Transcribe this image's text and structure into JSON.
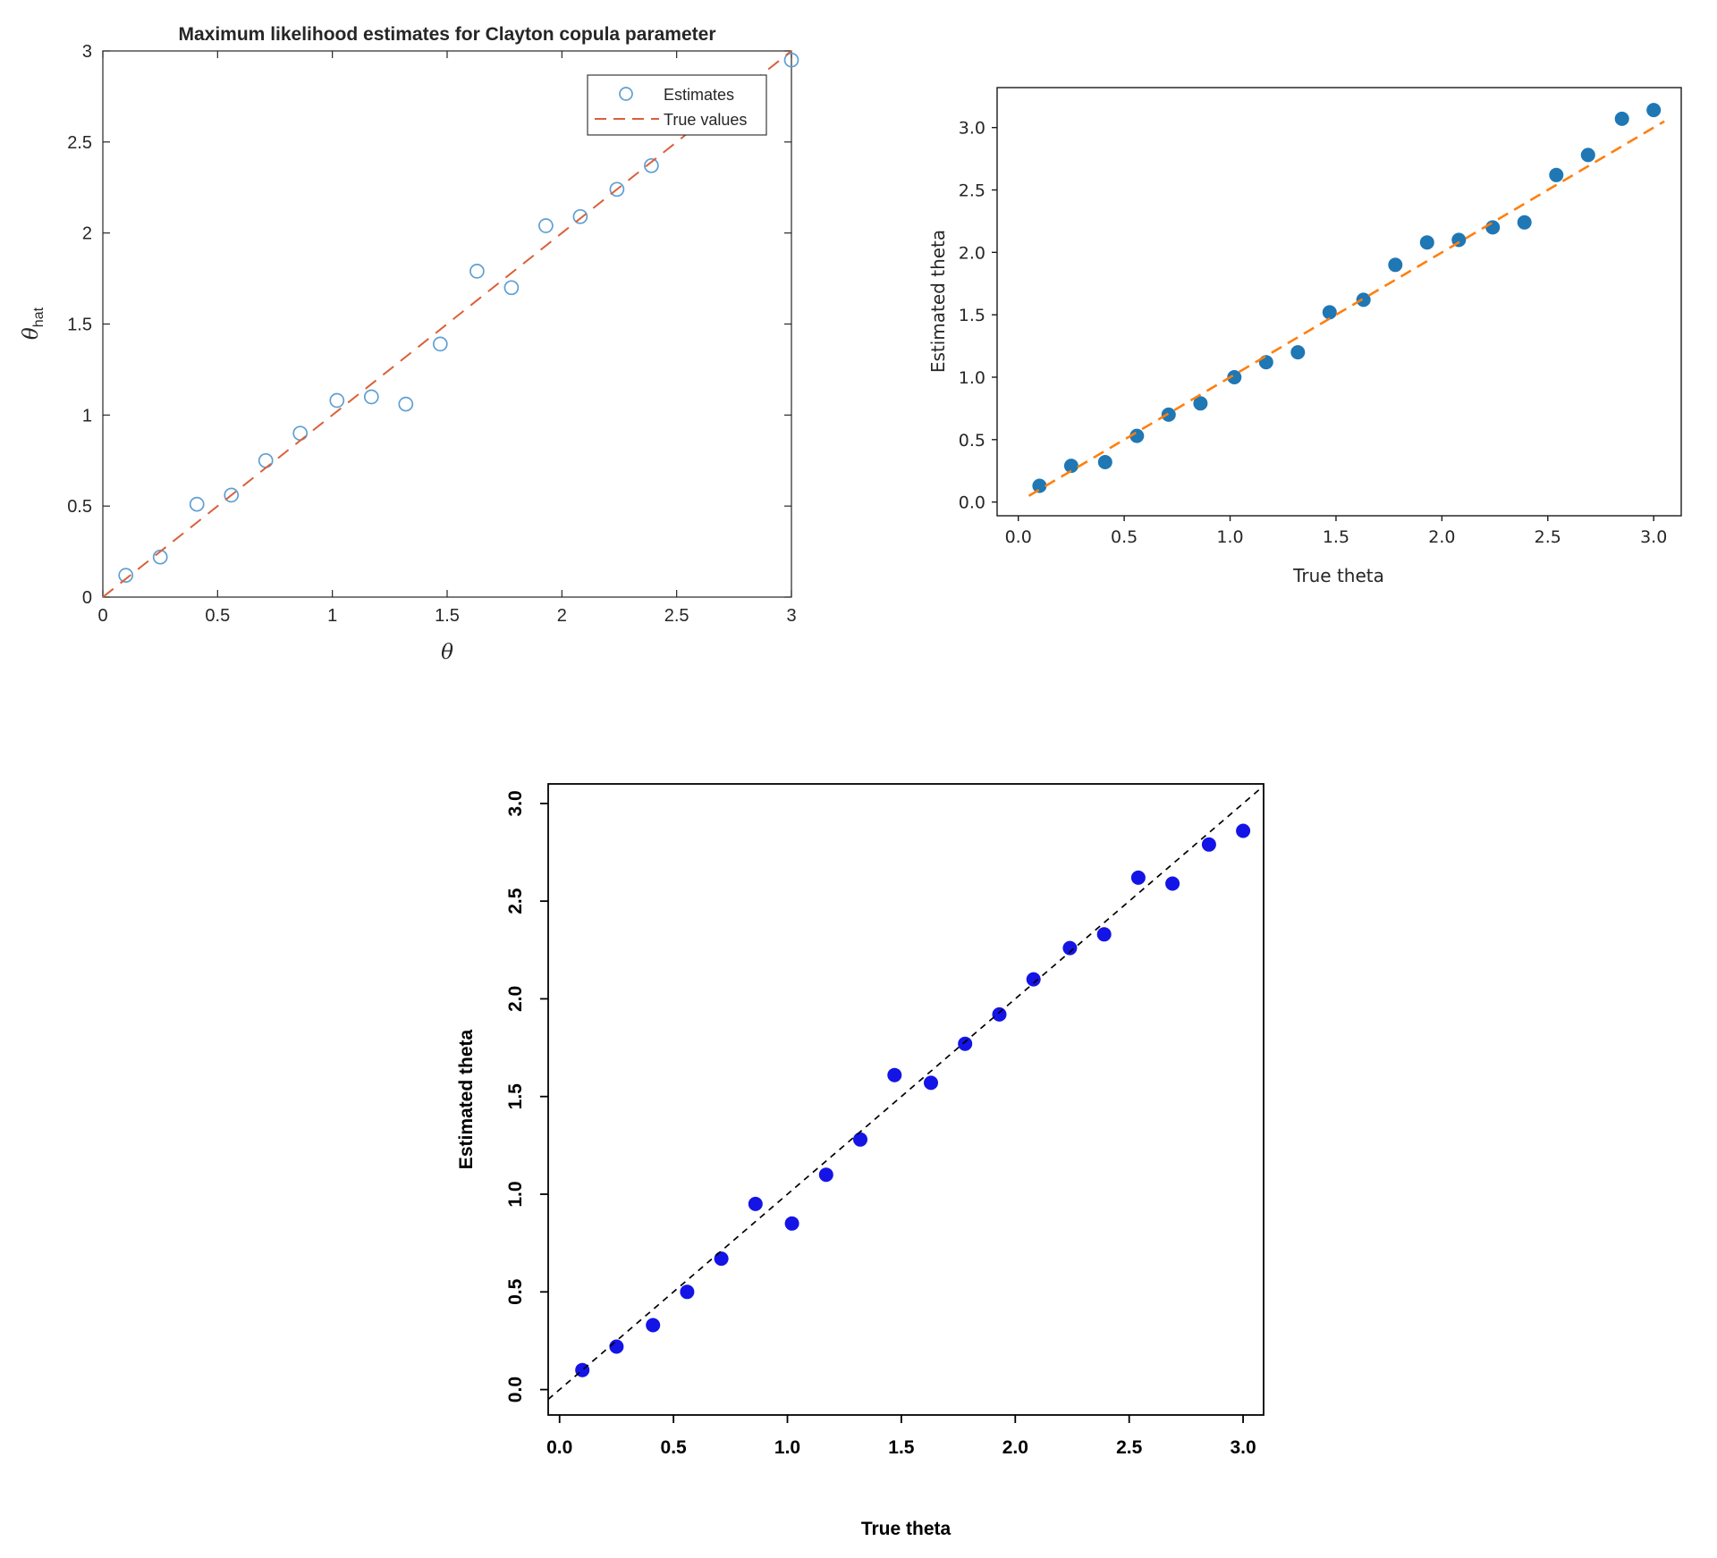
{
  "figure": {
    "description": "Three scatter plots of maximum likelihood estimates versus true values of the Clayton copula parameter",
    "background": "#ffffff"
  },
  "chart_data": [
    {
      "id": "chart-matlab",
      "type": "scatter",
      "style": "matlab",
      "title": "Maximum likelihood estimates for Clayton copula parameter",
      "xlabel": "θ",
      "ylabel": {
        "base": "θ",
        "subscript": "hat"
      },
      "xlim": [
        0,
        3
      ],
      "ylim": [
        0,
        3
      ],
      "grid": false,
      "xticks": {
        "values": [
          0,
          0.5,
          1,
          1.5,
          2,
          2.5,
          3
        ],
        "labels": [
          "0",
          "0.5",
          "1",
          "1.5",
          "2",
          "2.5",
          "3"
        ]
      },
      "yticks": {
        "values": [
          0,
          0.5,
          1,
          1.5,
          2,
          2.5,
          3
        ],
        "labels": [
          "0",
          "0.5",
          "1",
          "1.5",
          "2",
          "2.5",
          "3"
        ]
      },
      "legend": {
        "position": "top-right",
        "entries": [
          {
            "label": "Estimates",
            "type": "marker"
          },
          {
            "label": "True values",
            "type": "line"
          }
        ]
      },
      "series": [
        {
          "name": "Estimates",
          "kind": "scatter",
          "marker": "circle-open",
          "color": "#5f9fd3",
          "x": [
            0.1,
            0.25,
            0.41,
            0.56,
            0.71,
            0.86,
            1.02,
            1.17,
            1.32,
            1.47,
            1.63,
            1.78,
            1.93,
            2.08,
            2.24,
            2.39,
            3.0
          ],
          "y": [
            0.12,
            0.22,
            0.51,
            0.56,
            0.75,
            0.9,
            1.08,
            1.1,
            1.06,
            1.39,
            1.79,
            1.7,
            2.04,
            2.09,
            2.24,
            2.37,
            2.95
          ]
        },
        {
          "name": "True values",
          "kind": "line",
          "dash": "dashed",
          "color": "#d9603a",
          "x": [
            0,
            3
          ],
          "y": [
            0,
            3
          ]
        }
      ]
    },
    {
      "id": "chart-matplotlib",
      "type": "scatter",
      "style": "matplotlib",
      "title": "",
      "xlabel": "True theta",
      "ylabel": "Estimated theta",
      "xlim": [
        -0.1,
        3.13
      ],
      "ylim": [
        -0.11,
        3.32
      ],
      "grid": false,
      "xticks": {
        "values": [
          0,
          0.5,
          1,
          1.5,
          2,
          2.5,
          3
        ],
        "labels": [
          "0.0",
          "0.5",
          "1.0",
          "1.5",
          "2.0",
          "2.5",
          "3.0"
        ]
      },
      "yticks": {
        "values": [
          0,
          0.5,
          1,
          1.5,
          2,
          2.5,
          3
        ],
        "labels": [
          "0.0",
          "0.5",
          "1.0",
          "1.5",
          "2.0",
          "2.5",
          "3.0"
        ]
      },
      "legend": null,
      "series": [
        {
          "name": "Estimated theta",
          "kind": "scatter",
          "marker": "circle-filled",
          "color": "#1f77b4",
          "x": [
            0.1,
            0.25,
            0.41,
            0.56,
            0.71,
            0.86,
            1.02,
            1.17,
            1.32,
            1.47,
            1.63,
            1.78,
            1.93,
            2.08,
            2.24,
            2.39,
            2.54,
            2.69,
            2.85,
            3.0
          ],
          "y": [
            0.13,
            0.29,
            0.32,
            0.53,
            0.7,
            0.79,
            1.0,
            1.12,
            1.2,
            1.52,
            1.62,
            1.9,
            2.08,
            2.1,
            2.2,
            2.24,
            2.62,
            2.78,
            3.07,
            3.14
          ]
        },
        {
          "name": "Identity line",
          "kind": "line",
          "dash": "dashed",
          "color": "#ff7f0e",
          "x": [
            0.05,
            3.05
          ],
          "y": [
            0.05,
            3.05
          ]
        }
      ]
    },
    {
      "id": "chart-r",
      "type": "scatter",
      "style": "r",
      "title": "",
      "xlabel": "True theta",
      "ylabel": "Estimated theta",
      "xlim": [
        -0.05,
        3.09
      ],
      "ylim": [
        -0.13,
        3.1
      ],
      "grid": false,
      "xticks": {
        "values": [
          0,
          0.5,
          1,
          1.5,
          2,
          2.5,
          3
        ],
        "labels": [
          "0.0",
          "0.5",
          "1.0",
          "1.5",
          "2.0",
          "2.5",
          "3.0"
        ]
      },
      "yticks": {
        "values": [
          0,
          0.5,
          1,
          1.5,
          2,
          2.5,
          3
        ],
        "labels": [
          "0.0",
          "0.5",
          "1.0",
          "1.5",
          "2.0",
          "2.5",
          "3.0"
        ]
      },
      "legend": null,
      "series": [
        {
          "name": "Estimated theta",
          "kind": "scatter",
          "marker": "circle-filled",
          "color": "#1414e6",
          "x": [
            0.1,
            0.25,
            0.41,
            0.56,
            0.71,
            0.86,
            1.02,
            1.17,
            1.32,
            1.47,
            1.63,
            1.78,
            1.93,
            2.08,
            2.24,
            2.39,
            2.54,
            2.69,
            2.85,
            3.0
          ],
          "y": [
            0.1,
            0.22,
            0.33,
            0.5,
            0.67,
            0.95,
            0.85,
            1.1,
            1.28,
            1.61,
            1.57,
            1.77,
            1.92,
            2.1,
            2.26,
            2.33,
            2.62,
            2.59,
            2.79,
            2.86
          ]
        },
        {
          "name": "Identity line",
          "kind": "line",
          "dash": "dotted",
          "color": "#000000",
          "x": [
            -0.05,
            3.09
          ],
          "y": [
            -0.05,
            3.09
          ]
        }
      ]
    }
  ]
}
